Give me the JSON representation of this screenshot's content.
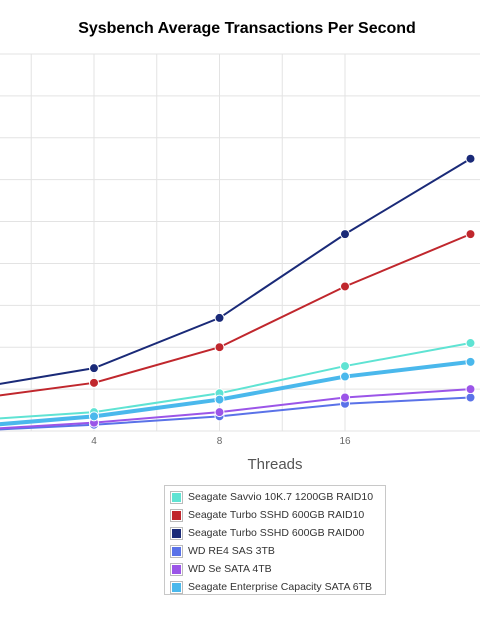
{
  "chart_data": {
    "type": "line",
    "title": "Sysbench Average Transactions Per Second",
    "xlabel": "Threads",
    "ylabel": "",
    "x": [
      2,
      4,
      8,
      16,
      32
    ],
    "x_tick_labels": [
      "4",
      "8",
      "16"
    ],
    "ylim": [
      0,
      9
    ],
    "grid": true,
    "legend_position": "bottom",
    "series": [
      {
        "name": "Seagate Savvio 10K.7 1200GB RAID10",
        "color": "#5fe3d3",
        "values": [
          0.25,
          0.45,
          0.9,
          1.55,
          2.1
        ]
      },
      {
        "name": "Seagate Turbo SSHD 600GB RAID10",
        "color": "#c0272d",
        "values": [
          0.75,
          1.15,
          2.0,
          3.45,
          4.7
        ]
      },
      {
        "name": "Seagate Turbo SSHD 600GB RAID00",
        "color": "#1a2a78",
        "values": [
          1.0,
          1.5,
          2.7,
          4.7,
          6.5
        ]
      },
      {
        "name": "WD RE4 SAS 3TB",
        "color": "#5a72e8",
        "values": [
          0.0,
          0.15,
          0.35,
          0.65,
          0.8
        ]
      },
      {
        "name": "WD Se SATA 4TB",
        "color": "#9b55e8",
        "values": [
          0.02,
          0.2,
          0.45,
          0.8,
          1.0
        ]
      },
      {
        "name": "Seagate Enterprise Capacity SATA 6TB",
        "color": "#4ab8ec",
        "values": [
          0.1,
          0.35,
          0.75,
          1.3,
          1.65
        ]
      }
    ]
  }
}
